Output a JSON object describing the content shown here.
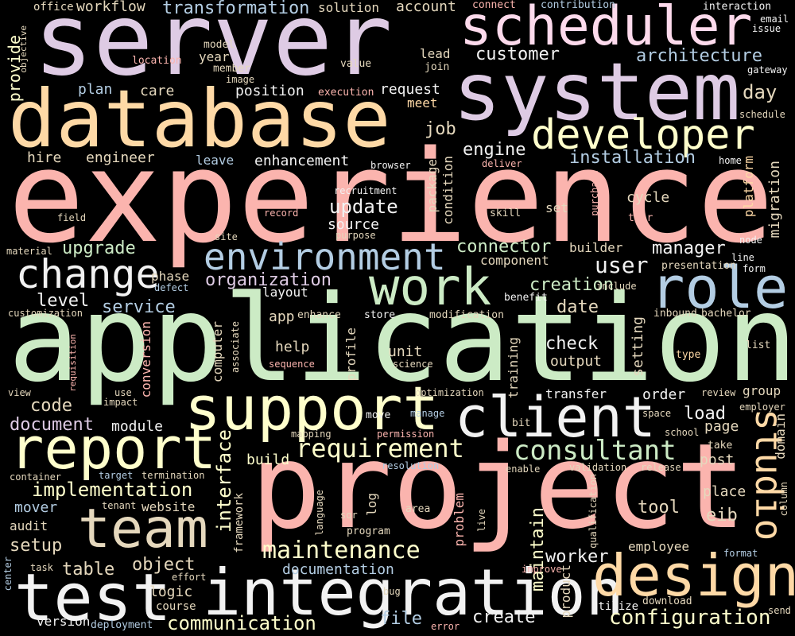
{
  "palette": {
    "background": "#000000",
    "pink": "#fbb4ae",
    "blue": "#b3cde3",
    "green": "#ccebc5",
    "lavender": "#decbe4",
    "peach": "#fed9a6",
    "yellow": "#ffffcc",
    "tan": "#e5d8bd",
    "rose": "#fddaec",
    "white": "#f2f2f2"
  },
  "words": {
    "experience": "experience",
    "application": "application",
    "project": "project",
    "server": "server",
    "system": "system",
    "database": "database",
    "scheduler": "scheduler",
    "integration": "integration",
    "test": "test",
    "design": "design",
    "support": "support",
    "client": "client",
    "report": "report",
    "team": "team",
    "role": "role",
    "work": "work",
    "developer": "developer",
    "environment": "environment",
    "change": "change",
    "studio": "studio",
    "consultant": "consultant",
    "requirement": "requirement",
    "maintenance": "maintenance",
    "implementation": "implementation",
    "configuration": "configuration",
    "communication": "communication",
    "interface": "interface",
    "maintain": "maintain",
    "document": "document",
    "documentation": "documentation",
    "architecture": "architecture",
    "installation": "installation",
    "transformation": "transformation",
    "organization": "organization",
    "connector": "connector",
    "manager": "manager",
    "user": "user",
    "creation": "creation",
    "update": "update",
    "source": "source",
    "upgrade": "upgrade",
    "service": "service",
    "level": "level",
    "code": "code",
    "module": "module",
    "build": "build",
    "setup": "setup",
    "table": "table",
    "object": "object",
    "logic": "logic",
    "course": "course",
    "version": "version",
    "deployment": "deployment",
    "file": "file",
    "error": "error",
    "create": "create",
    "utilize": "utilize",
    "download": "download",
    "send": "send",
    "customer": "customer",
    "engine": "engine",
    "job": "job",
    "hire": "hire",
    "engineer": "engineer",
    "leave": "leave",
    "enhancement": "enhancement",
    "care": "care",
    "plan": "plan",
    "position": "position",
    "request": "request",
    "meet": "meet",
    "day": "day",
    "workflow": "workflow",
    "office": "office",
    "solution": "solution",
    "account": "account",
    "connect": "connect",
    "contribution": "contribution",
    "interaction": "interaction",
    "email": "email",
    "issue": "issue",
    "objective": "objective",
    "provide": "provide",
    "model": "model",
    "member": "member",
    "image": "image",
    "year": "year",
    "location": "location",
    "value": "value",
    "join": "join",
    "lead": "lead",
    "execution": "execution",
    "gateway": "gateway",
    "schedule": "schedule",
    "browser": "browser",
    "deliver": "deliver",
    "home": "home",
    "recruitment": "recruitment",
    "package": "package",
    "condition": "condition",
    "cycle": "cycle",
    "purchase": "purchase",
    "platform": "platform",
    "migration": "migration",
    "field": "field",
    "record": "record",
    "skill": "skill",
    "tier": "tier",
    "set": "set",
    "purpose": "purpose",
    "site": "site",
    "node": "node",
    "line": "line",
    "form": "form",
    "material": "material",
    "phase": "phase",
    "component": "component",
    "builder": "builder",
    "presentation": "presentation",
    "defect": "defect",
    "include": "include",
    "layout": "layout",
    "benefit": "benefit",
    "date": "date",
    "customization": "customization",
    "app": "app",
    "enhance": "enhance",
    "store": "store",
    "modification": "modification",
    "inbound": "inbound",
    "bachelor": "bachelor",
    "computer": "computer",
    "associate": "associate",
    "profile": "profile",
    "help": "help",
    "sequence": "sequence",
    "conversion": "conversion",
    "check": "check",
    "output": "output",
    "unit": "unit",
    "science": "science",
    "training": "training",
    "setting": "setting",
    "list": "list",
    "type": "type",
    "requisition": "requisition",
    "view": "view",
    "use": "use",
    "impact": "impact",
    "optimization": "optimization",
    "transfer": "transfer",
    "order": "order",
    "group": "group",
    "review": "review",
    "employer": "employer",
    "move": "move",
    "manage": "manage",
    "bit": "bit",
    "space": "space",
    "load": "load",
    "page": "page",
    "school": "school",
    "domain": "domain",
    "mapping": "mapping",
    "permission": "permission",
    "take": "take",
    "post": "post",
    "container": "container",
    "target": "target",
    "termination": "termination",
    "resolution": "resolution",
    "enable": "enable",
    "validation": "validation",
    "release": "release",
    "website": "website",
    "framework": "framework",
    "log": "log",
    "language": "language",
    "problem": "problem",
    "area": "area",
    "qualification": "qualification",
    "place": "place",
    "column": "column",
    "mover": "mover",
    "tenant": "tenant",
    "sqr": "sqr",
    "live": "live",
    "tool": "tool",
    "audit": "audit",
    "program": "program",
    "eib": "eib",
    "center": "center",
    "worker": "worker",
    "employee": "employee",
    "task": "task",
    "effort": "effort",
    "improve": "improve",
    "format": "format",
    "product": "product",
    "bug": "bug"
  }
}
